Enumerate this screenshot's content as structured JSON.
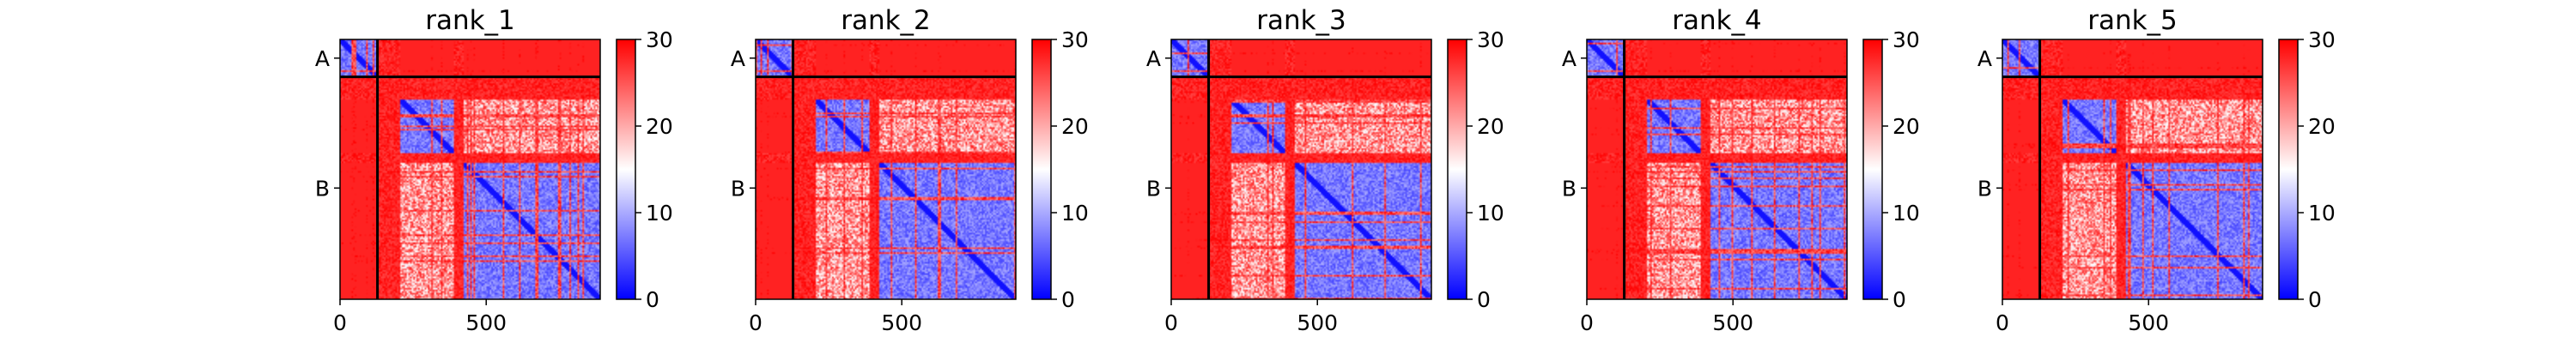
{
  "chart_data": [
    {
      "type": "heatmap",
      "title": "rank_1",
      "x_ticks": [
        "0",
        "500"
      ],
      "x_tick_values": [
        0,
        500
      ],
      "y_ticks": [
        "A",
        "B"
      ],
      "chain_boundary": 128,
      "length": 890,
      "colorbar": {
        "ticks": [
          "0",
          "10",
          "20",
          "30"
        ],
        "tick_values": [
          0,
          10,
          20,
          30
        ],
        "range": [
          0,
          30
        ],
        "colormap": [
          "#0000ff",
          "#ffffff",
          "#ff0000"
        ]
      }
    },
    {
      "type": "heatmap",
      "title": "rank_2",
      "x_ticks": [
        "0",
        "500"
      ],
      "x_tick_values": [
        0,
        500
      ],
      "y_ticks": [
        "A",
        "B"
      ],
      "chain_boundary": 128,
      "length": 890,
      "colorbar": {
        "ticks": [
          "0",
          "10",
          "20",
          "30"
        ],
        "tick_values": [
          0,
          10,
          20,
          30
        ],
        "range": [
          0,
          30
        ],
        "colormap": [
          "#0000ff",
          "#ffffff",
          "#ff0000"
        ]
      }
    },
    {
      "type": "heatmap",
      "title": "rank_3",
      "x_ticks": [
        "0",
        "500"
      ],
      "x_tick_values": [
        0,
        500
      ],
      "y_ticks": [
        "A",
        "B"
      ],
      "chain_boundary": 128,
      "length": 890,
      "colorbar": {
        "ticks": [
          "0",
          "10",
          "20",
          "30"
        ],
        "tick_values": [
          0,
          10,
          20,
          30
        ],
        "range": [
          0,
          30
        ],
        "colormap": [
          "#0000ff",
          "#ffffff",
          "#ff0000"
        ]
      }
    },
    {
      "type": "heatmap",
      "title": "rank_4",
      "x_ticks": [
        "0",
        "500"
      ],
      "x_tick_values": [
        0,
        500
      ],
      "y_ticks": [
        "A",
        "B"
      ],
      "chain_boundary": 128,
      "length": 890,
      "colorbar": {
        "ticks": [
          "0",
          "10",
          "20",
          "30"
        ],
        "tick_values": [
          0,
          10,
          20,
          30
        ],
        "range": [
          0,
          30
        ],
        "colormap": [
          "#0000ff",
          "#ffffff",
          "#ff0000"
        ]
      }
    },
    {
      "type": "heatmap",
      "title": "rank_5",
      "x_ticks": [
        "0",
        "500"
      ],
      "x_tick_values": [
        0,
        500
      ],
      "y_ticks": [
        "A",
        "B"
      ],
      "chain_boundary": 128,
      "length": 890,
      "colorbar": {
        "ticks": [
          "0",
          "10",
          "20",
          "30"
        ],
        "tick_values": [
          0,
          10,
          20,
          30
        ],
        "range": [
          0,
          30
        ],
        "colormap": [
          "#0000ff",
          "#ffffff",
          "#ff0000"
        ]
      }
    }
  ]
}
